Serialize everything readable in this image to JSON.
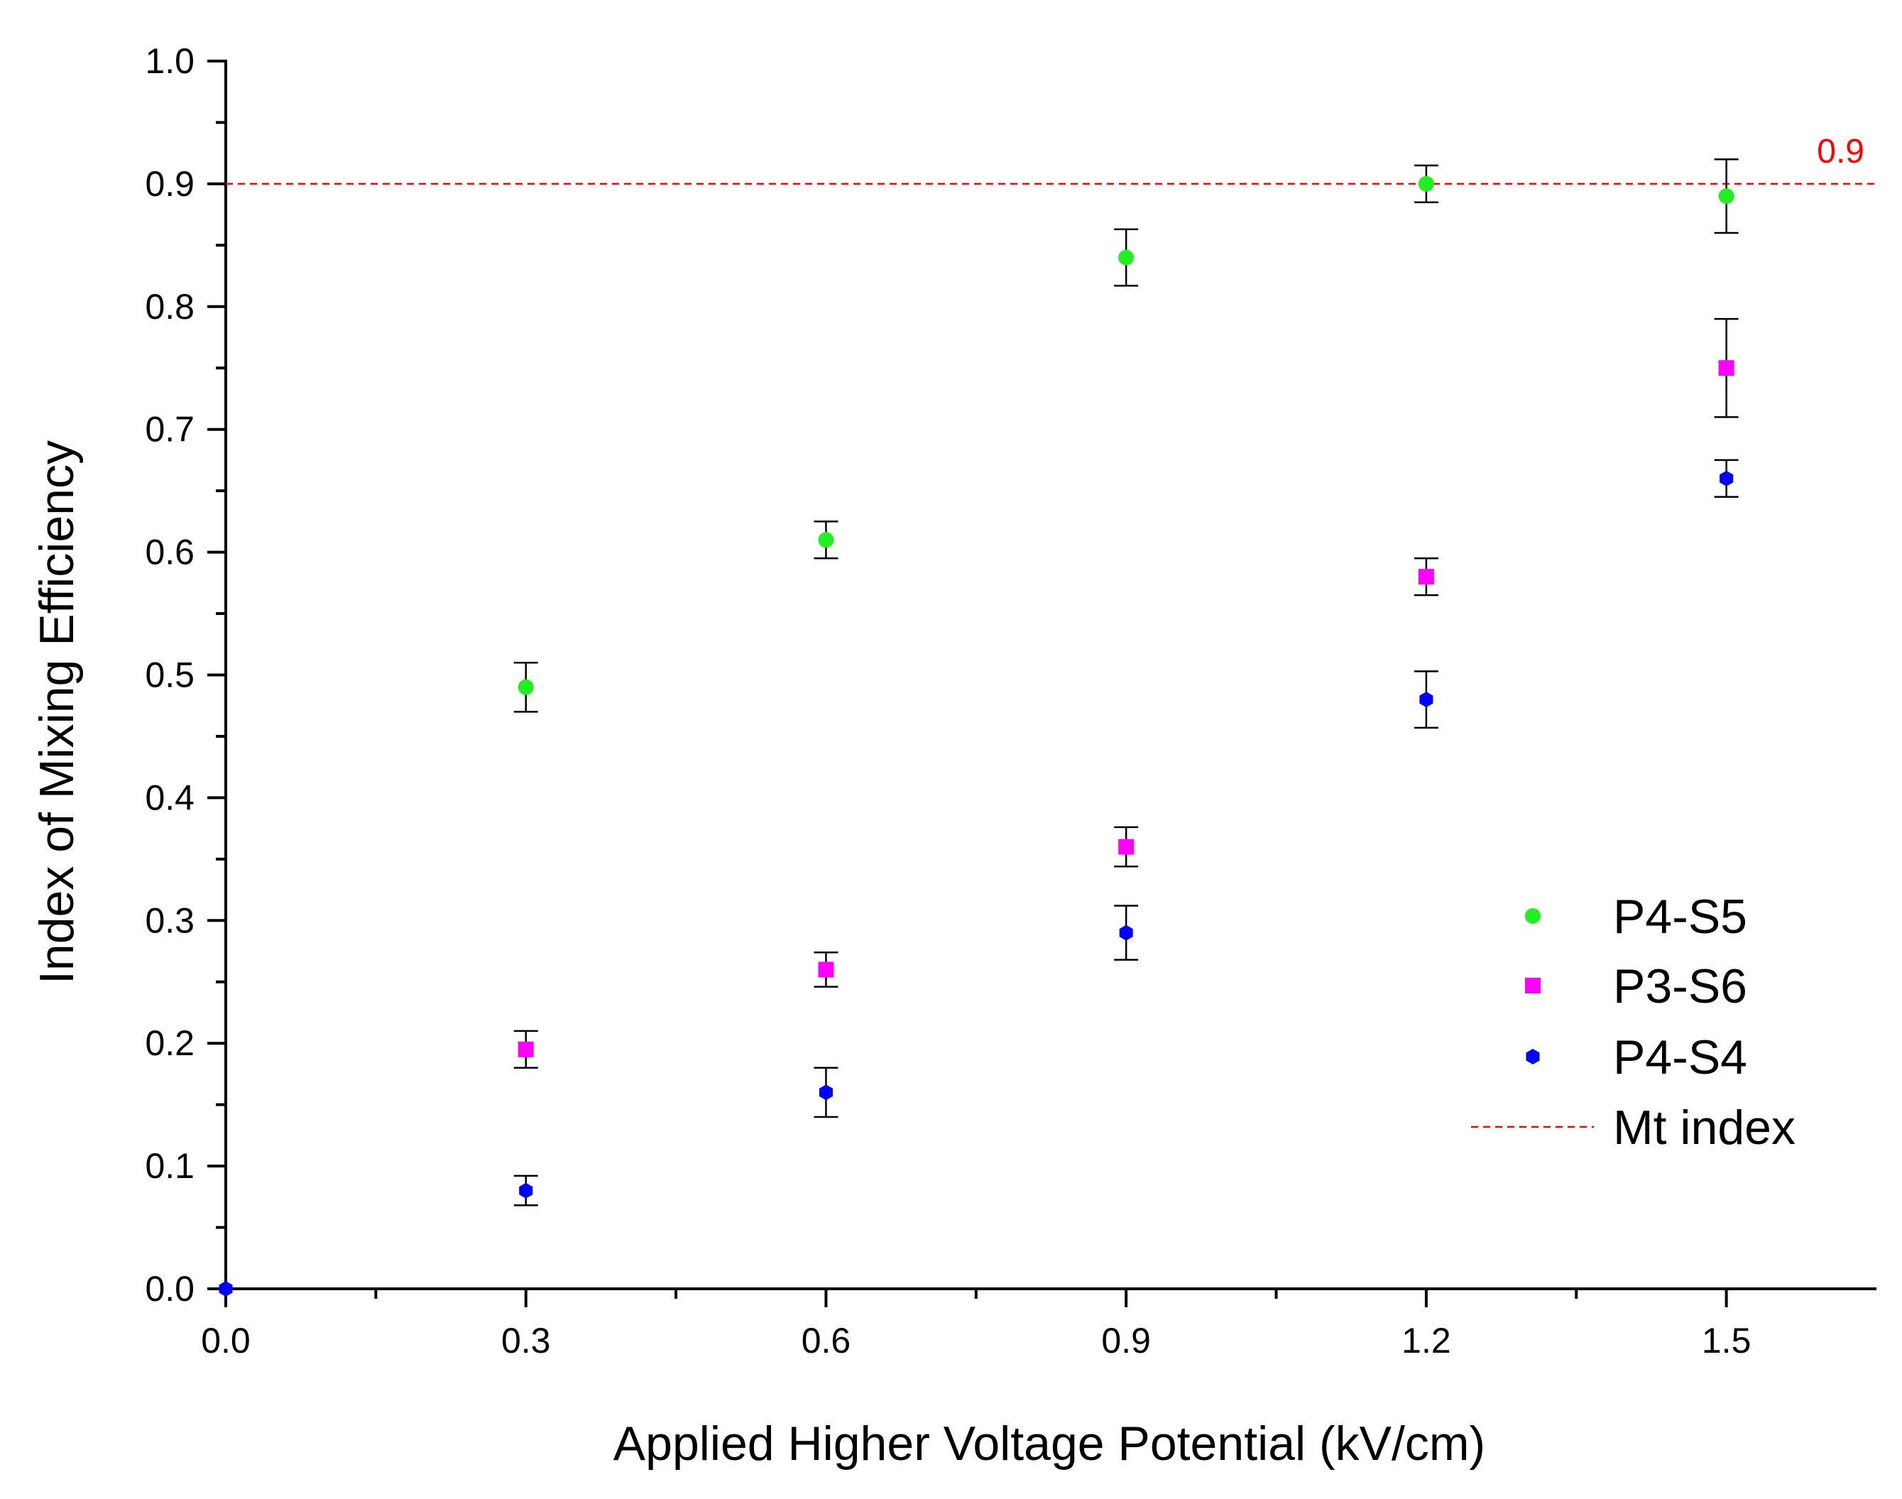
{
  "chart_data": {
    "type": "scatter",
    "xlabel": "Applied Higher Voltage Potential (kV/cm)",
    "ylabel": "Index of Mixing Efficiency",
    "xlim": [
      0.0,
      1.65
    ],
    "ylim": [
      0.0,
      1.0
    ],
    "x_ticks": [
      "0.0",
      "0.3",
      "0.6",
      "0.9",
      "1.2",
      "1.5"
    ],
    "y_ticks": [
      "0.0",
      "0.1",
      "0.2",
      "0.3",
      "0.4",
      "0.5",
      "0.6",
      "0.7",
      "0.8",
      "0.9",
      "1.0"
    ],
    "grid": false,
    "legend_position": "lower-right",
    "series": [
      {
        "name": "P4-S5",
        "marker": "circle",
        "color": "#22ee22",
        "x": [
          0.3,
          0.6,
          0.9,
          1.2,
          1.5
        ],
        "y": [
          0.49,
          0.61,
          0.84,
          0.9,
          0.89
        ],
        "error": [
          0.02,
          0.015,
          0.023,
          0.015,
          0.03
        ]
      },
      {
        "name": "P3-S6",
        "marker": "square",
        "color": "#ff00ff",
        "x": [
          0.3,
          0.6,
          0.9,
          1.2,
          1.5
        ],
        "y": [
          0.195,
          0.26,
          0.36,
          0.58,
          0.75
        ],
        "error": [
          0.015,
          0.014,
          0.016,
          0.015,
          0.04
        ]
      },
      {
        "name": "P4-S4",
        "marker": "hexagon",
        "color": "#0000ff",
        "x": [
          0.0,
          0.3,
          0.6,
          0.9,
          1.2,
          1.5
        ],
        "y": [
          0.0,
          0.08,
          0.16,
          0.29,
          0.48,
          0.66
        ],
        "error": [
          0,
          0.012,
          0.02,
          0.022,
          0.023,
          0.015
        ]
      }
    ],
    "reference_line": {
      "name": "Mt index",
      "y": 0.9,
      "label": "0.9",
      "color": "#ff0000",
      "style": "dashed"
    }
  }
}
